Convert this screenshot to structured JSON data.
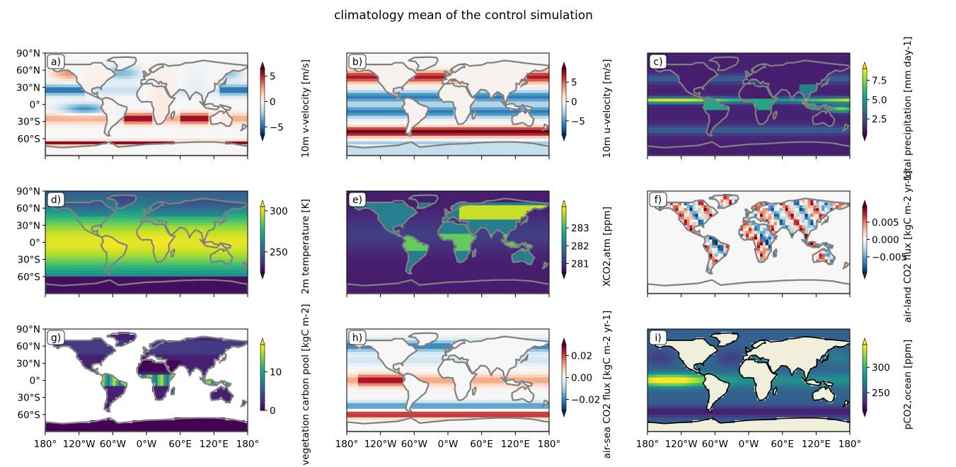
{
  "title": "climatology mean of the control simulation",
  "lat_tick_labels": [
    "90°N",
    "60°N",
    "30°N",
    "0°",
    "30°S",
    "60°S"
  ],
  "lat_tick_values": [
    90,
    60,
    30,
    0,
    -30,
    -60
  ],
  "lon_tick_labels": [
    "180°",
    "120°W",
    "60°W",
    "0°W",
    "60°E",
    "120°E",
    "180°"
  ],
  "lon_tick_values": [
    -180,
    -120,
    -60,
    0,
    60,
    120,
    180
  ],
  "chart_data": [
    {
      "type": "heatmap",
      "panel": "a)",
      "colormap": "RdBu_r",
      "colorbar_label": "10m v-velocity [m/s]",
      "colorbar_ticks": [
        "5",
        "0",
        "−5"
      ],
      "colorbar_tick_values": [
        5,
        0,
        -5
      ],
      "vmin": -6.5,
      "vmax": 6.5,
      "extend": "both",
      "coast_color": "#808080",
      "xlim": [
        -180,
        180
      ],
      "ylim": [
        -90,
        90
      ]
    },
    {
      "type": "heatmap",
      "panel": "b)",
      "colormap": "RdBu_r",
      "colorbar_label": "10m u-velocity [m/s]",
      "colorbar_ticks": [
        "5",
        "0",
        "−5"
      ],
      "colorbar_tick_values": [
        5,
        0,
        -5
      ],
      "vmin": -8.5,
      "vmax": 8.5,
      "extend": "both",
      "coast_color": "#808080",
      "xlim": [
        -180,
        180
      ],
      "ylim": [
        -90,
        90
      ]
    },
    {
      "type": "heatmap",
      "panel": "c)",
      "colormap": "viridis",
      "colorbar_label": "total precipitation [mm day-1]",
      "colorbar_ticks": [
        "7.5",
        "5.0",
        "2.5"
      ],
      "colorbar_tick_values": [
        7.5,
        5.0,
        2.5
      ],
      "vmin": 0.5,
      "vmax": 9.0,
      "extend": "both",
      "coast_color": "#808080",
      "xlim": [
        -180,
        180
      ],
      "ylim": [
        -90,
        90
      ]
    },
    {
      "type": "heatmap",
      "panel": "d)",
      "colormap": "viridis",
      "colorbar_label": "2m temperature [K]",
      "colorbar_ticks": [
        "300",
        "250"
      ],
      "colorbar_tick_values": [
        300,
        250
      ],
      "vmin": 225,
      "vmax": 305,
      "extend": "both",
      "coast_color": "#808080",
      "xlim": [
        -180,
        180
      ],
      "ylim": [
        -90,
        90
      ]
    },
    {
      "type": "heatmap",
      "panel": "e)",
      "colormap": "viridis",
      "colorbar_label": "XCO2,atm [ppm]",
      "colorbar_ticks": [
        "283",
        "282",
        "281"
      ],
      "colorbar_tick_values": [
        283,
        282,
        281
      ],
      "vmin": 280.5,
      "vmax": 284.2,
      "extend": "both",
      "coast_color": "#808080",
      "xlim": [
        -180,
        180
      ],
      "ylim": [
        -90,
        90
      ]
    },
    {
      "type": "heatmap",
      "panel": "f)",
      "colormap": "RdBu_r",
      "colorbar_label": "air-land CO2 flux [kgC m-2 yr-1]",
      "colorbar_ticks": [
        "0.005",
        "0.000",
        "−0.005"
      ],
      "colorbar_tick_values": [
        0.005,
        0.0,
        -0.005
      ],
      "vmin": -0.0095,
      "vmax": 0.0095,
      "extend": "both",
      "coast_color": "#808080",
      "xlim": [
        -180,
        180
      ],
      "ylim": [
        -90,
        90
      ]
    },
    {
      "type": "heatmap",
      "panel": "g)",
      "colormap": "viridis",
      "colorbar_label": "vegetation carbon pool [kgC m-2]",
      "colorbar_ticks": [
        "10",
        "0"
      ],
      "colorbar_tick_values": [
        10,
        0
      ],
      "vmin": 0,
      "vmax": 17,
      "extend": "max",
      "coast_color": "#808080",
      "xlim": [
        -180,
        180
      ],
      "ylim": [
        -90,
        90
      ]
    },
    {
      "type": "heatmap",
      "panel": "h)",
      "colormap": "RdBu_r",
      "colorbar_label": "air-sea CO2 flux [kgC m-2 yr-1]",
      "colorbar_ticks": [
        "0.02",
        "0.00",
        "−0.02"
      ],
      "colorbar_tick_values": [
        0.02,
        0.0,
        -0.02
      ],
      "vmin": -0.03,
      "vmax": 0.03,
      "extend": "both",
      "coast_color": "#808080",
      "xlim": [
        -180,
        180
      ],
      "ylim": [
        -90,
        90
      ]
    },
    {
      "type": "heatmap",
      "panel": "i)",
      "colormap": "viridis",
      "colorbar_label": "pCO2,ocean [ppm]",
      "colorbar_ticks": [
        "300",
        "250"
      ],
      "colorbar_tick_values": [
        300,
        250
      ],
      "vmin": 215,
      "vmax": 345,
      "extend": "both",
      "coast_color": "#000000",
      "land_color": "#efefdb",
      "xlim": [
        -180,
        180
      ],
      "ylim": [
        -90,
        90
      ]
    }
  ]
}
